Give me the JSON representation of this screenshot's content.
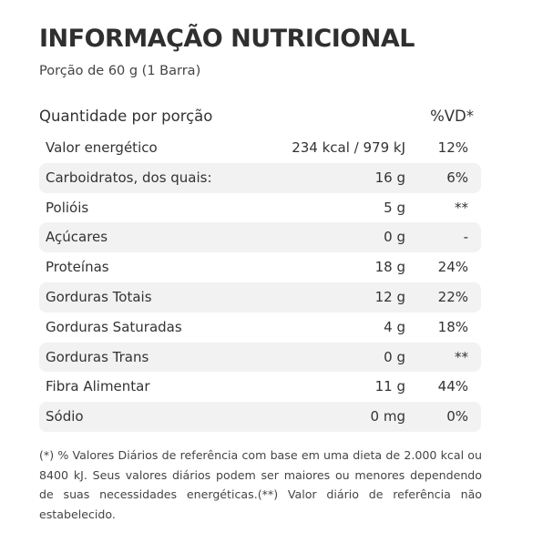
{
  "header": {
    "title": "INFORMAÇÃO NUTRICIONAL",
    "portion": "Porção de 60 g (1 Barra)"
  },
  "table": {
    "label_header": "Quantidade por porção",
    "vd_header": "%VD*",
    "rows": [
      {
        "label": "Valor energético",
        "amount": "234 kcal / 979 kJ",
        "vd": "12%"
      },
      {
        "label": "Carboidratos, dos quais:",
        "amount": "16 g",
        "vd": "6%"
      },
      {
        "label": "Polióis",
        "amount": "5 g",
        "vd": "**"
      },
      {
        "label": "Açúcares",
        "amount": "0 g",
        "vd": "-"
      },
      {
        "label": "Proteínas",
        "amount": "18 g",
        "vd": "24%"
      },
      {
        "label": "Gorduras Totais",
        "amount": "12 g",
        "vd": "22%"
      },
      {
        "label": "Gorduras Saturadas",
        "amount": "4 g",
        "vd": "18%"
      },
      {
        "label": "Gorduras Trans",
        "amount": "0 g",
        "vd": "**"
      },
      {
        "label": "Fibra Alimentar",
        "amount": "11 g",
        "vd": "44%"
      },
      {
        "label": "Sódio",
        "amount": "0 mg",
        "vd": "0%"
      }
    ]
  },
  "footnote": "(*) % Valores Diários de referência com base em uma dieta de 2.000 kcal ou 8400 kJ. Seus valores diários podem ser maiores ou menores dependendo de suas necessidades energéticas.(**) Valor diário de referência não estabelecido.",
  "colors": {
    "row_shade": "#f2f2f2",
    "text": "#333333"
  }
}
